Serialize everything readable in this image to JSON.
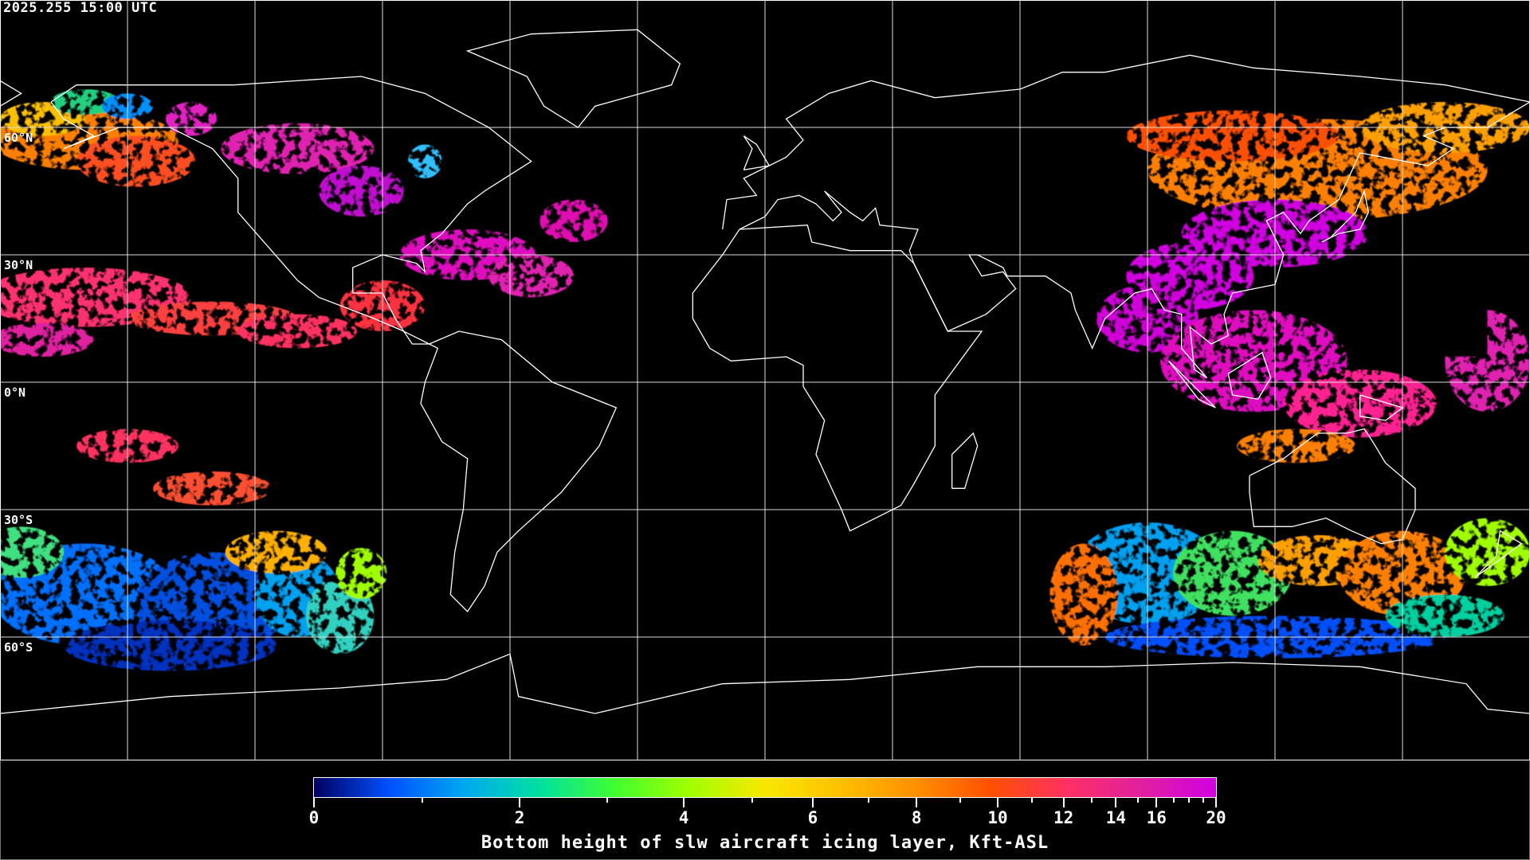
{
  "timestamp": "2025.255 15:00 UTC",
  "latitude_labels": [
    "60°N",
    "30°N",
    "0°N",
    "30°S",
    "60°S"
  ],
  "colorbar": {
    "title": "Bottom height of slw aircraft icing layer, Kft-ASL",
    "tick_labels": [
      "0",
      "2",
      "4",
      "6",
      "8",
      "10",
      "12",
      "14",
      "16",
      "20"
    ],
    "range": [
      0,
      20
    ],
    "colors": [
      "#000060",
      "#0050ff",
      "#00a8f0",
      "#00e0a0",
      "#40ff30",
      "#a0ff00",
      "#f8e800",
      "#ffc000",
      "#ff9000",
      "#ff5000",
      "#ff3060",
      "#e020a0",
      "#d000e0"
    ]
  },
  "map": {
    "projection": "equirectangular",
    "gridlines": true,
    "grid_spacing_deg": 30,
    "coastline_color": "#ffffff"
  }
}
